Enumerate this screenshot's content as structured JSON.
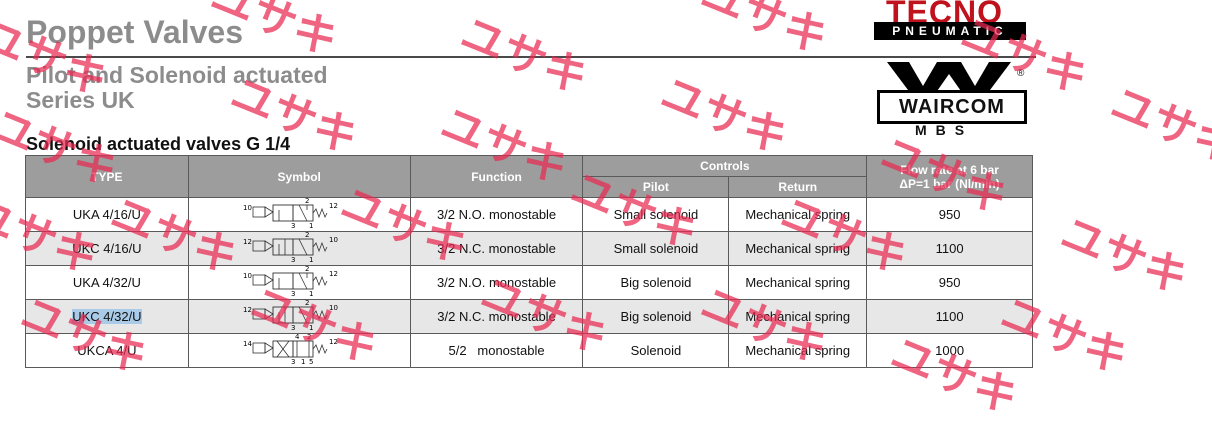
{
  "header": {
    "title": "Poppet Valves",
    "subtitle_line1": "Pilot and Solenoid actuated",
    "subtitle_line2": "Series UK",
    "section_title": "Solenoid actuated valves G 1/4"
  },
  "brands": {
    "tecno_top": "TECNO",
    "tecno_bottom": "PNEUMATIC",
    "waircom_name": "WAIRCOM",
    "waircom_reg": "®",
    "waircom_sub": "MBS"
  },
  "table": {
    "headers": {
      "type": "TYPE",
      "symbol": "Symbol",
      "function": "Function",
      "controls": "Controls",
      "pilot": "Pilot",
      "return": "Return",
      "flow_line1": "Flow rate at 6 bar",
      "flow_line2": "ΔP=1 bar (Nl/min)"
    },
    "rows": [
      {
        "type": "UKA 4/16/U",
        "function": "3/2 N.O. monostable",
        "pilot": "Small solenoid",
        "return": "Mechanical spring",
        "flow": "950",
        "sym_left": "10",
        "sym_right": "12",
        "sym_bottom": "3",
        "sym_top": "2",
        "sym_bottom2": "1"
      },
      {
        "type": "UKC 4/16/U",
        "function": "3/2 N.C. monostable",
        "pilot": "Small solenoid",
        "return": "Mechanical spring",
        "flow": "1100",
        "sym_left": "12",
        "sym_right": "10",
        "sym_bottom": "3",
        "sym_top": "2",
        "sym_bottom2": "1"
      },
      {
        "type": "UKA 4/32/U",
        "function": "3/2 N.O. monostable",
        "pilot": "Big solenoid",
        "return": "Mechanical spring",
        "flow": "950",
        "sym_left": "10",
        "sym_right": "12",
        "sym_bottom": "3",
        "sym_top": "2",
        "sym_bottom2": "1"
      },
      {
        "type": "UKC 4/32/U",
        "function": "3/2 N.C. monostable",
        "pilot": "Big solenoid",
        "return": "Mechanical spring",
        "flow": "1100",
        "sym_left": "12",
        "sym_right": "10",
        "sym_bottom": "3",
        "sym_top": "2",
        "sym_bottom2": "1"
      },
      {
        "type": "UKCA 4/U",
        "function": "5/2   monostable",
        "pilot": "Solenoid",
        "return": "Mechanical spring",
        "flow": "1000",
        "sym_left": "14",
        "sym_right": "12",
        "sym_bottom": "3",
        "sym_top": "4",
        "sym_top2": "2",
        "sym_bottom2": "1",
        "sym_bottom3": "5"
      }
    ]
  },
  "watermark_text": "ユサキ",
  "colors": {
    "header_bg": "#9d9d9d",
    "alt_row": "#e7e7e7",
    "selection": "#a9cbe8",
    "watermark": "#e82850",
    "tecno_red": "#c0121d"
  }
}
